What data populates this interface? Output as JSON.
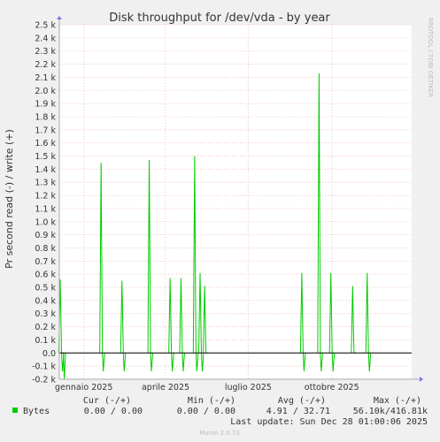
{
  "chart_data": {
    "type": "line",
    "title": "Disk throughput for /dev/vda - by year",
    "ylabel": "Pr second read (-) / write (+)",
    "side_label": "RRDTOOL / TOBI OETIKER",
    "ylim": [
      -0.2,
      2.5
    ],
    "yticks": [
      -0.2,
      -0.1,
      0.0,
      0.1,
      0.2,
      0.3,
      0.4,
      0.5,
      0.6,
      0.7,
      0.8,
      0.9,
      1.0,
      1.1,
      1.2,
      1.3,
      1.4,
      1.5,
      1.6,
      1.7,
      1.8,
      1.9,
      2.0,
      2.1,
      2.2,
      2.3,
      2.4,
      2.5
    ],
    "ytick_labels": [
      "-0.2 k",
      "-0.1 k",
      "0.0",
      "0.1 k",
      "0.2 k",
      "0.3 k",
      "0.4 k",
      "0.5 k",
      "0.6 k",
      "0.7 k",
      "0.8 k",
      "0.9 k",
      "1.0 k",
      "1.1 k",
      "1.2 k",
      "1.3 k",
      "1.4 k",
      "1.5 k",
      "1.6 k",
      "1.7 k",
      "1.8 k",
      "1.9 k",
      "2.0 k",
      "2.1 k",
      "2.2 k",
      "2.3 k",
      "2.4 k",
      "2.5 k"
    ],
    "xlim": [
      "2024-12-05",
      "2025-12-28"
    ],
    "xticks": [
      "2025-01-01",
      "2025-04-01",
      "2025-07-01",
      "2025-10-01"
    ],
    "xtick_labels": [
      "gennaio 2025",
      "aprile 2025",
      "luglio 2025",
      "ottobre 2025"
    ],
    "series": [
      {
        "name": "Bytes",
        "color": "#00cc00",
        "spikes": [
          {
            "date": "2024-12-06",
            "write": 0.56,
            "read": -0.14
          },
          {
            "date": "2024-12-08",
            "write": 0.0,
            "read": -0.2
          },
          {
            "date": "2025-01-20",
            "write": 1.45,
            "read": -0.14
          },
          {
            "date": "2025-02-12",
            "write": 0.55,
            "read": -0.14
          },
          {
            "date": "2025-03-14",
            "write": 1.47,
            "read": -0.14
          },
          {
            "date": "2025-04-06",
            "write": 0.57,
            "read": -0.14
          },
          {
            "date": "2025-04-18",
            "write": 0.57,
            "read": -0.14
          },
          {
            "date": "2025-05-03",
            "write": 1.5,
            "read": -0.14
          },
          {
            "date": "2025-05-09",
            "write": 0.61,
            "read": -0.14
          },
          {
            "date": "2025-05-14",
            "write": 0.51,
            "read": 0.0
          },
          {
            "date": "2025-08-29",
            "write": 0.61,
            "read": -0.14
          },
          {
            "date": "2025-09-17",
            "write": 2.13,
            "read": -0.14
          },
          {
            "date": "2025-09-30",
            "write": 0.61,
            "read": -0.14
          },
          {
            "date": "2025-10-24",
            "write": 0.51,
            "read": 0.0
          },
          {
            "date": "2025-11-09",
            "write": 0.61,
            "read": -0.14
          }
        ]
      }
    ]
  },
  "legend": {
    "headers": [
      "Cur (-/+)",
      "Min (-/+)",
      "Avg (-/+)",
      "Max (-/+)"
    ],
    "rows": [
      {
        "label": "Bytes",
        "color": "#00cc00",
        "cur": "0.00 /  0.00",
        "min": "0.00 /  0.00",
        "avg": "4.91 / 32.71",
        "max": "56.10k/416.81k"
      }
    ]
  },
  "footer": {
    "last_update": "Last update: Sun Dec 28 01:00:06 2025",
    "munin_version": "Munin 2.0.73"
  }
}
